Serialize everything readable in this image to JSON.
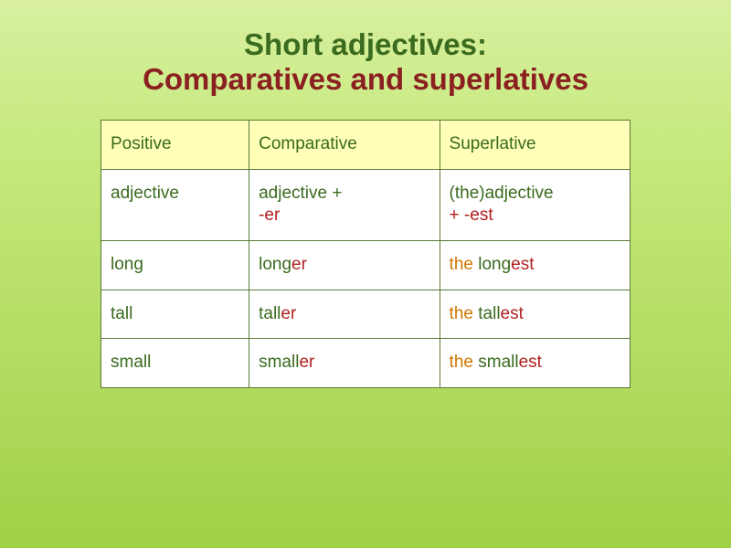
{
  "title": {
    "line1": "Short adjectives:",
    "line2": "Comparatives and superlatives"
  },
  "colors": {
    "green": "#3a6b1f",
    "red": "#b02020",
    "orange": "#d07800",
    "title_green": "#3a6b1f",
    "title_red": "#8b2020",
    "header_bg": "#ffffb8",
    "cell_bg": "#ffffff",
    "border": "#5a7a3a"
  },
  "header": {
    "c1": "Positive",
    "c2": "Comparative",
    "c3": "Superlative"
  },
  "row_rule": {
    "c1": "adjective",
    "c2_a": "adjective + ",
    "c2_b": "-er",
    "c3_a": "(the)adjective ",
    "c3_b": "+ -est"
  },
  "row_long": {
    "c1": "long",
    "c2_a": "long",
    "c2_b": "er",
    "c3_a": "the ",
    "c3_b": "long",
    "c3_c": "est"
  },
  "row_tall": {
    "c1": "tall",
    "c2_a": "tall",
    "c2_b": "er",
    "c3_a": "the ",
    "c3_b": "tall",
    "c3_c": "est"
  },
  "row_small": {
    "c1": "small",
    "c2_a": "small",
    "c2_b": "er",
    "c3_a": "the ",
    "c3_b": "small",
    "c3_c": "est"
  }
}
